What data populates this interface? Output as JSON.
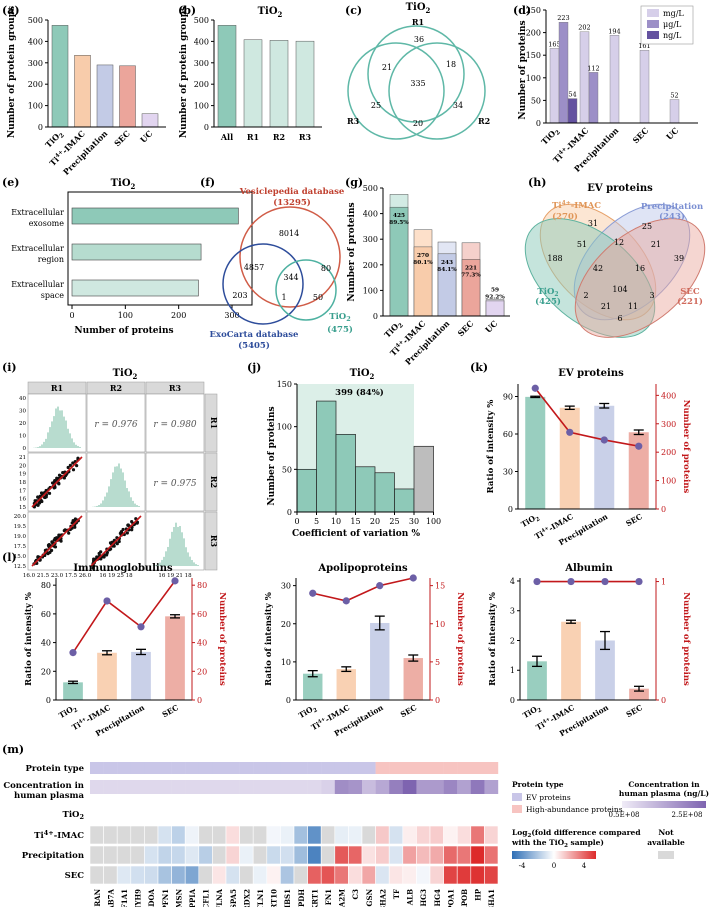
{
  "panels": {
    "a": {
      "label": "(a)"
    },
    "b": {
      "label": "(b)"
    },
    "c": {
      "label": "(c)"
    },
    "d": {
      "label": "(d)"
    },
    "e": {
      "label": "(e)"
    },
    "f": {
      "label": "(f)"
    },
    "g": {
      "label": "(g)"
    },
    "h": {
      "label": "(h)"
    },
    "i": {
      "label": "(i)"
    },
    "j": {
      "label": "(j)"
    },
    "k": {
      "label": "(k)"
    },
    "l": {
      "label": "(l)"
    },
    "m": {
      "label": "(m)"
    }
  },
  "colors": {
    "tio2": "#8ec9b8",
    "imac": "#f8ccab",
    "prec": "#c3cbe6",
    "sec": "#eba59b",
    "uc": "#e2d5f0",
    "red": "#c2181b",
    "purple": "#6c5fa6"
  },
  "chart_data": [
    {
      "id": "a",
      "type": "bar",
      "title": "",
      "ylabel": "Number of protein groups",
      "categories": [
        "TiO2",
        "Ti4+-IMAC",
        "Precipitation",
        "SEC",
        "UC"
      ],
      "values": [
        475,
        335,
        290,
        286,
        62
      ],
      "ylim": [
        0,
        500
      ],
      "yticks": [
        0,
        100,
        200,
        300,
        400,
        500
      ]
    },
    {
      "id": "b",
      "type": "bar",
      "title": "TiO2",
      "ylabel": "Number of protein groups",
      "categories": [
        "All",
        "R1",
        "R2",
        "R3"
      ],
      "values": [
        475,
        408,
        405,
        401
      ],
      "ylim": [
        0,
        500
      ],
      "yticks": [
        0,
        100,
        200,
        300,
        400,
        500
      ]
    },
    {
      "id": "c",
      "type": "venn",
      "title": "TiO2",
      "sets": [
        "R1",
        "R2",
        "R3"
      ],
      "regions": {
        "R1_only": 36,
        "R2_only": 34,
        "R3_only": 25,
        "R1_R3": 21,
        "R1_R2": 18,
        "R2_R3": 20,
        "all": 335
      }
    },
    {
      "id": "d",
      "type": "bar",
      "ylabel": "Number of proteins",
      "categories": [
        "TiO2",
        "Ti4+-IMAC",
        "Precipitation",
        "SEC",
        "UC"
      ],
      "series": [
        {
          "name": "mg/L",
          "values": [
            165,
            202,
            194,
            161,
            52
          ]
        },
        {
          "name": "μg/L",
          "values": [
            223,
            112,
            null,
            null,
            null
          ]
        },
        {
          "name": "ng/L",
          "values": [
            54,
            null,
            null,
            null,
            null
          ]
        }
      ],
      "ylim": [
        0,
        250
      ],
      "yticks": [
        0,
        50,
        100,
        150,
        200,
        250
      ]
    },
    {
      "id": "e",
      "type": "bar",
      "orientation": "horizontal",
      "title": "TiO2",
      "xlabel": "Number of proteins",
      "categories": [
        "Extracellular exosome",
        "Extracellular region",
        "Extracellular space"
      ],
      "values": [
        312,
        242,
        237
      ],
      "xlim": [
        0,
        330
      ],
      "xticks": [
        0,
        100,
        200,
        300
      ]
    },
    {
      "id": "f",
      "type": "venn",
      "sets": [
        "Vesiclepedia database",
        "ExoCarta database",
        "TiO2"
      ],
      "set_sizes": [
        "(13295)",
        "(5405)",
        "(475)"
      ],
      "regions": {
        "V_only": 8014,
        "E_only": 203,
        "T_only": 50,
        "V_E": 4857,
        "V_E_T": 344,
        "V_T": 80,
        "E_T": 1
      }
    },
    {
      "id": "g",
      "type": "bar",
      "ylabel": "Number of proteins",
      "categories": [
        "TiO2",
        "Ti4+-IMAC",
        "Precipitation",
        "SEC",
        "UC"
      ],
      "totals": [
        475,
        337,
        289,
        286,
        64
      ],
      "ev_values": [
        425,
        270,
        243,
        221,
        59
      ],
      "ev_labels": [
        [
          "425",
          "89.5%"
        ],
        [
          "270",
          "80.1%"
        ],
        [
          "243",
          "84.1%"
        ],
        [
          "221",
          "77.3%"
        ],
        [
          "59",
          "92.2%"
        ]
      ],
      "ylim": [
        0,
        500
      ],
      "yticks": [
        0,
        100,
        200,
        300,
        400,
        500
      ]
    },
    {
      "id": "h",
      "type": "venn",
      "title": "EV proteins",
      "sets": [
        "Ti4+-IMAC",
        "Precipitation",
        "TiO2",
        "SEC"
      ],
      "set_sizes": [
        "(270)",
        "(243)",
        "(425)",
        "(221)"
      ],
      "regions": [
        188,
        31,
        25,
        39,
        51,
        12,
        21,
        42,
        16,
        2,
        104,
        3,
        21,
        11,
        6
      ]
    },
    {
      "id": "i",
      "type": "scatter-matrix",
      "title": "TiO2",
      "samples": [
        "R1",
        "R2",
        "R3"
      ],
      "correlations": [
        {
          "pair": "R1-R2",
          "label": "r = 0.976"
        },
        {
          "pair": "R1-R3",
          "label": "r = 0.980"
        },
        {
          "pair": "R2-R3",
          "label": "r = 0.975"
        }
      ],
      "tick_labels": {
        "x_bottom_left": "16.0 21.5 23.0 17.5 26.0",
        "x_bottom_mid": "16 19 25 18",
        "x_bottom_right": "16 19 21 18",
        "y_left_top": [
          "40",
          "30",
          "20",
          "10",
          "0"
        ],
        "y_left_mid": [
          "21",
          "20",
          "19",
          "18",
          "17",
          "16",
          "15"
        ],
        "y_left_bottom": [
          "20.0",
          "19.5",
          "19.0",
          "17.5",
          "15.0",
          "12.5"
        ]
      }
    },
    {
      "id": "j",
      "type": "histogram",
      "title": "TiO2",
      "xlabel": "Coefficient of variation %",
      "ylabel": "Number of proteins",
      "bins": [
        "0-5",
        "5-10",
        "10-15",
        "15-20",
        "20-25",
        "25-30",
        "30-100"
      ],
      "values": [
        50,
        130,
        91,
        53,
        46,
        27,
        77
      ],
      "annotation": "399 (84%)",
      "ylim": [
        0,
        150
      ],
      "yticks": [
        0,
        50,
        100,
        150
      ],
      "xticks": [
        "0",
        "5",
        "10",
        "15",
        "20",
        "25",
        "30",
        "100"
      ]
    },
    {
      "id": "k",
      "type": "bar+line",
      "title": "EV proteins",
      "ylabel": "Ratio of intensity %",
      "y2label": "Number of proteins",
      "categories": [
        "TiO2",
        "Ti4+-IMAC",
        "Precipitation",
        "SEC"
      ],
      "bars": [
        89.7,
        81.0,
        82.6,
        61.4
      ],
      "errors": [
        0.5,
        1.3,
        1.8,
        1.8
      ],
      "line": [
        425,
        270,
        243,
        221
      ],
      "ylim": [
        0,
        100
      ],
      "yticks": [
        0,
        30,
        60,
        90
      ],
      "y2lim": [
        0,
        440
      ],
      "y2ticks": [
        0,
        100,
        200,
        300,
        400
      ]
    },
    {
      "id": "l1",
      "type": "bar+line",
      "title": "Immunoglobulins",
      "ylabel": "Ratio of intensity %",
      "y2label": "Number of proteins",
      "categories": [
        "TiO2",
        "Ti4+-IMAC",
        "Precipitation",
        "SEC"
      ],
      "bars": [
        12.3,
        32.9,
        33.5,
        58.3
      ],
      "errors": [
        0.8,
        1.4,
        1.8,
        1.1
      ],
      "line": [
        33,
        69,
        51,
        83
      ],
      "ylim": [
        0,
        85
      ],
      "yticks": [
        0,
        20,
        40,
        60,
        80
      ],
      "y2lim": [
        0,
        85
      ],
      "y2ticks": [
        0,
        20,
        40,
        60,
        80
      ]
    },
    {
      "id": "l2",
      "type": "bar+line",
      "title": "Apolipoproteins",
      "ylabel": "Ratio of intensity %",
      "y2label": "Number of proteins",
      "categories": [
        "TiO2",
        "Ti4+-IMAC",
        "Precipitation",
        "SEC"
      ],
      "bars": [
        6.9,
        8.1,
        20.2,
        11.0
      ],
      "errors": [
        0.8,
        0.6,
        1.8,
        0.8
      ],
      "line": [
        14,
        13,
        15,
        16
      ],
      "ylim": [
        0,
        32
      ],
      "yticks": [
        0,
        10,
        20,
        30
      ],
      "y2lim": [
        0,
        16
      ],
      "y2ticks": [
        0,
        5,
        10,
        15
      ]
    },
    {
      "id": "l3",
      "type": "bar+line",
      "title": "Albumin",
      "ylabel": "Ratio of intensity %",
      "y2label": "Number of proteins",
      "categories": [
        "TiO2",
        "Ti4+-IMAC",
        "Precipitation",
        "SEC"
      ],
      "bars": [
        1.3,
        2.63,
        2.0,
        0.38
      ],
      "errors": [
        0.17,
        0.05,
        0.3,
        0.08
      ],
      "line": [
        1,
        1,
        1,
        1
      ],
      "ylim": [
        0,
        4.1
      ],
      "yticks": [
        0,
        1,
        2,
        3,
        4
      ],
      "y2lim": [
        0,
        1.03
      ],
      "y2ticks": [
        0,
        1
      ]
    },
    {
      "id": "m",
      "type": "heatmap",
      "rows": [
        "Protein type",
        "Concentration in human plasma",
        "TiO2",
        "Ti4+-IMAC",
        "Precipitation",
        "SEC"
      ],
      "columns": [
        "RAN",
        "RAB7A",
        "EEF1A1",
        "MYH9",
        "ALDOA",
        "PFN1",
        "MSN",
        "PPIA",
        "CFL1",
        "FLNA",
        "HSPA5",
        "PRDX2",
        "TLN1",
        "KRT10",
        "THBS1",
        "GAPDH",
        "KRT1",
        "FN1",
        "A2M",
        "C3",
        "GSN",
        "IGHA2",
        "TF",
        "ALB",
        "IGHG3",
        "IGHG4",
        "APOA1",
        "APOB",
        "HP",
        "IGHA1"
      ],
      "protein_type": [
        "EV",
        "EV",
        "EV",
        "EV",
        "EV",
        "EV",
        "EV",
        "EV",
        "EV",
        "EV",
        "EV",
        "EV",
        "EV",
        "EV",
        "EV",
        "EV",
        "EV",
        "EV",
        "EV",
        "EV",
        "EV",
        "HA",
        "HA",
        "HA",
        "HA",
        "HA",
        "HA",
        "HA",
        "HA",
        "HA"
      ],
      "concentration": [
        0.15,
        0.15,
        0.15,
        0.15,
        0.15,
        0.15,
        0.15,
        0.15,
        0.15,
        0.15,
        0.15,
        0.15,
        0.15,
        0.15,
        0.15,
        0.15,
        0.15,
        0.2,
        0.7,
        0.65,
        0.35,
        0.5,
        0.8,
        1.0,
        0.6,
        0.6,
        0.75,
        0.55,
        0.85,
        0.55
      ],
      "values": {
        "TiO2": [
          0,
          0,
          0,
          0,
          0,
          0,
          0,
          0,
          0,
          0,
          0,
          0,
          0,
          0,
          0,
          0,
          0,
          0,
          0,
          0,
          0,
          0,
          0,
          0,
          0,
          0,
          0,
          0,
          0,
          0
        ],
        "Ti4+-IMAC": [
          null,
          null,
          null,
          null,
          null,
          -1.0,
          -1.6,
          -0.4,
          null,
          null,
          0.8,
          null,
          null,
          -0.3,
          -0.5,
          -2.2,
          -3.8,
          null,
          -0.6,
          -0.5,
          null,
          1.3,
          -1.0,
          0.4,
          1.0,
          1.2,
          0.3,
          0.8,
          3.2,
          1.0
        ],
        "Precipitation": [
          null,
          null,
          null,
          null,
          -1.0,
          -1.5,
          -1.4,
          -0.8,
          -1.7,
          null,
          1.0,
          -0.5,
          null,
          -1.3,
          -1.1,
          -2.3,
          -4.3,
          null,
          3.9,
          3.6,
          0.7,
          1.2,
          -0.9,
          2.2,
          1.6,
          2.0,
          3.5,
          3.2,
          5.0,
          3.3
        ],
        "SEC": [
          null,
          null,
          -0.8,
          -1.1,
          -1.2,
          -2.1,
          -2.6,
          -3.1,
          null,
          0.6,
          -1.0,
          null,
          -0.5,
          0.3,
          -2.0,
          null,
          3.7,
          4.0,
          3.2,
          0.8,
          2.1,
          -0.9,
          0.6,
          0.4,
          -0.3,
          1.0,
          4.4,
          4.6,
          4.8,
          4.4
        ]
      },
      "legend": {
        "protein_type_title": "Protein type",
        "protein_type_items": [
          "EV proteins",
          "High-abundance proteins"
        ],
        "conc_title": "Concentration in human plasma (ng/L)",
        "conc_ticks": [
          "0.5E+08",
          "2.5E+08"
        ],
        "fold_title": "Log2(fold difference compared with the TiO2 sample)",
        "fold_ticks": [
          "-4",
          "0",
          "4"
        ],
        "na_label": "Not available"
      }
    }
  ]
}
